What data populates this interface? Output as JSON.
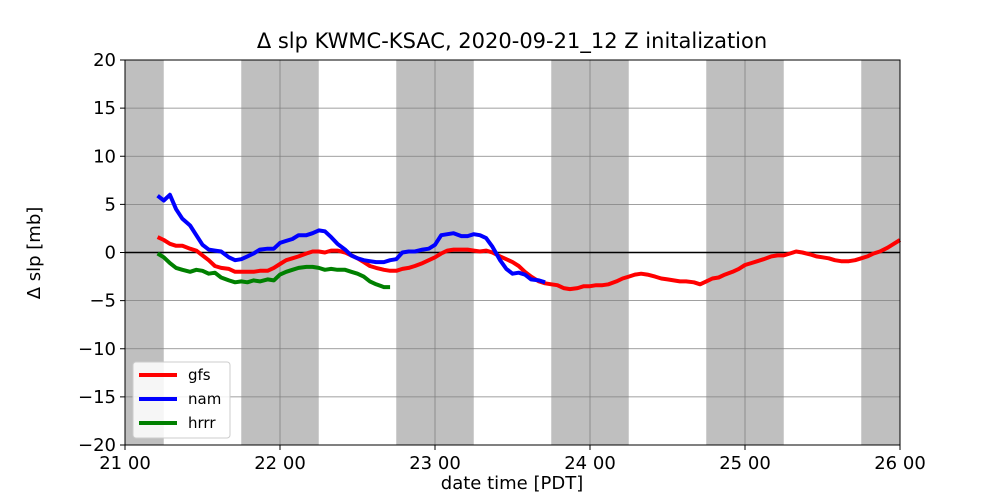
{
  "chart_data": {
    "type": "line",
    "title": "Δ slp KWMC-KSAC, 2020-09-21_12 Z initalization",
    "xlabel": "date time [PDT]",
    "ylabel": "Δ slp [mb]",
    "xlim": [
      21.0,
      26.0
    ],
    "ylim": [
      -20,
      20
    ],
    "x_ticks": [
      21,
      22,
      23,
      24,
      25,
      26
    ],
    "x_tick_labels": [
      "21 00",
      "22 00",
      "23 00",
      "24 00",
      "25 00",
      "26 00"
    ],
    "y_ticks": [
      -20,
      -15,
      -10,
      -5,
      0,
      5,
      10,
      15,
      20
    ],
    "y_tick_labels": [
      "−20",
      "−15",
      "−10",
      "−5",
      "0",
      "5",
      "10",
      "15",
      "20"
    ],
    "grid": true,
    "legend_position": "lower-left",
    "shaded_night_intervals": [
      [
        21.0,
        21.25
      ],
      [
        21.75,
        22.25
      ],
      [
        22.75,
        23.25
      ],
      [
        23.75,
        24.25
      ],
      [
        24.75,
        25.25
      ],
      [
        25.75,
        26.0
      ]
    ],
    "reference_line_y": 0,
    "colors": {
      "gfs": "#ff0000",
      "nam": "#0000ff",
      "hrrr": "#008000",
      "night": "#bfbfbf",
      "grid": "#808080"
    },
    "series": [
      {
        "name": "gfs",
        "color": "#ff0000",
        "points": [
          [
            21.21,
            1.6
          ],
          [
            21.25,
            1.3
          ],
          [
            21.29,
            0.9
          ],
          [
            21.33,
            0.7
          ],
          [
            21.37,
            0.7
          ],
          [
            21.42,
            0.4
          ],
          [
            21.46,
            0.2
          ],
          [
            21.5,
            -0.3
          ],
          [
            21.54,
            -0.8
          ],
          [
            21.58,
            -1.4
          ],
          [
            21.62,
            -1.6
          ],
          [
            21.67,
            -1.7
          ],
          [
            21.71,
            -2.0
          ],
          [
            21.75,
            -2.0
          ],
          [
            21.79,
            -2.0
          ],
          [
            21.83,
            -2.0
          ],
          [
            21.87,
            -1.9
          ],
          [
            21.92,
            -1.9
          ],
          [
            21.96,
            -1.6
          ],
          [
            22.0,
            -1.2
          ],
          [
            22.04,
            -0.8
          ],
          [
            22.08,
            -0.6
          ],
          [
            22.12,
            -0.4
          ],
          [
            22.17,
            -0.1
          ],
          [
            22.21,
            0.1
          ],
          [
            22.25,
            0.1
          ],
          [
            22.29,
            0.0
          ],
          [
            22.33,
            0.2
          ],
          [
            22.37,
            0.2
          ],
          [
            22.42,
            0.0
          ],
          [
            22.46,
            -0.3
          ],
          [
            22.5,
            -0.6
          ],
          [
            22.54,
            -1.0
          ],
          [
            22.58,
            -1.4
          ],
          [
            22.62,
            -1.6
          ],
          [
            22.67,
            -1.8
          ],
          [
            22.71,
            -1.9
          ],
          [
            22.75,
            -1.9
          ],
          [
            22.79,
            -1.7
          ],
          [
            22.83,
            -1.6
          ],
          [
            22.87,
            -1.4
          ],
          [
            22.92,
            -1.1
          ],
          [
            22.96,
            -0.8
          ],
          [
            23.0,
            -0.5
          ],
          [
            23.04,
            -0.1
          ],
          [
            23.08,
            0.2
          ],
          [
            23.12,
            0.3
          ],
          [
            23.17,
            0.3
          ],
          [
            23.21,
            0.3
          ],
          [
            23.25,
            0.2
          ],
          [
            23.29,
            0.1
          ],
          [
            23.33,
            0.2
          ],
          [
            23.37,
            0.0
          ],
          [
            23.42,
            -0.4
          ],
          [
            23.46,
            -0.7
          ],
          [
            23.5,
            -1.0
          ],
          [
            23.54,
            -1.4
          ],
          [
            23.58,
            -2.0
          ],
          [
            23.62,
            -2.5
          ],
          [
            23.67,
            -3.0
          ],
          [
            23.71,
            -3.2
          ],
          [
            23.75,
            -3.3
          ],
          [
            23.79,
            -3.4
          ],
          [
            23.83,
            -3.7
          ],
          [
            23.87,
            -3.8
          ],
          [
            23.92,
            -3.7
          ],
          [
            23.96,
            -3.5
          ],
          [
            24.0,
            -3.5
          ],
          [
            24.04,
            -3.4
          ],
          [
            24.08,
            -3.4
          ],
          [
            24.12,
            -3.3
          ],
          [
            24.17,
            -3.0
          ],
          [
            24.21,
            -2.7
          ],
          [
            24.25,
            -2.5
          ],
          [
            24.29,
            -2.3
          ],
          [
            24.33,
            -2.2
          ],
          [
            24.37,
            -2.3
          ],
          [
            24.42,
            -2.5
          ],
          [
            24.46,
            -2.7
          ],
          [
            24.5,
            -2.8
          ],
          [
            24.54,
            -2.9
          ],
          [
            24.58,
            -3.0
          ],
          [
            24.62,
            -3.0
          ],
          [
            24.67,
            -3.1
          ],
          [
            24.71,
            -3.3
          ],
          [
            24.75,
            -3.0
          ],
          [
            24.79,
            -2.7
          ],
          [
            24.83,
            -2.6
          ],
          [
            24.87,
            -2.3
          ],
          [
            24.92,
            -2.0
          ],
          [
            24.96,
            -1.7
          ],
          [
            25.0,
            -1.3
          ],
          [
            25.04,
            -1.1
          ],
          [
            25.08,
            -0.9
          ],
          [
            25.12,
            -0.7
          ],
          [
            25.17,
            -0.4
          ],
          [
            25.21,
            -0.3
          ],
          [
            25.25,
            -0.3
          ],
          [
            25.29,
            -0.1
          ],
          [
            25.33,
            0.1
          ],
          [
            25.37,
            0.0
          ],
          [
            25.42,
            -0.2
          ],
          [
            25.46,
            -0.4
          ],
          [
            25.5,
            -0.5
          ],
          [
            25.54,
            -0.6
          ],
          [
            25.58,
            -0.8
          ],
          [
            25.62,
            -0.9
          ],
          [
            25.67,
            -0.9
          ],
          [
            25.71,
            -0.8
          ],
          [
            25.75,
            -0.6
          ],
          [
            25.79,
            -0.4
          ],
          [
            25.83,
            -0.1
          ],
          [
            25.87,
            0.1
          ],
          [
            25.92,
            0.5
          ],
          [
            25.96,
            0.9
          ],
          [
            26.0,
            1.3
          ]
        ]
      },
      {
        "name": "nam",
        "color": "#0000ff",
        "points": [
          [
            21.21,
            5.9
          ],
          [
            21.25,
            5.4
          ],
          [
            21.29,
            6.0
          ],
          [
            21.33,
            4.5
          ],
          [
            21.37,
            3.5
          ],
          [
            21.42,
            2.8
          ],
          [
            21.46,
            1.8
          ],
          [
            21.5,
            0.8
          ],
          [
            21.54,
            0.3
          ],
          [
            21.58,
            0.2
          ],
          [
            21.62,
            0.1
          ],
          [
            21.67,
            -0.5
          ],
          [
            21.71,
            -0.8
          ],
          [
            21.75,
            -0.7
          ],
          [
            21.79,
            -0.4
          ],
          [
            21.83,
            -0.1
          ],
          [
            21.87,
            0.3
          ],
          [
            21.92,
            0.4
          ],
          [
            21.96,
            0.4
          ],
          [
            22.0,
            1.0
          ],
          [
            22.04,
            1.2
          ],
          [
            22.08,
            1.4
          ],
          [
            22.12,
            1.8
          ],
          [
            22.17,
            1.8
          ],
          [
            22.21,
            2.0
          ],
          [
            22.25,
            2.3
          ],
          [
            22.29,
            2.2
          ],
          [
            22.33,
            1.6
          ],
          [
            22.37,
            0.9
          ],
          [
            22.42,
            0.3
          ],
          [
            22.46,
            -0.3
          ],
          [
            22.5,
            -0.6
          ],
          [
            22.54,
            -0.8
          ],
          [
            22.58,
            -0.9
          ],
          [
            22.62,
            -1.0
          ],
          [
            22.67,
            -1.0
          ],
          [
            22.71,
            -0.8
          ],
          [
            22.75,
            -0.7
          ],
          [
            22.79,
            0.0
          ],
          [
            22.83,
            0.1
          ],
          [
            22.87,
            0.1
          ],
          [
            22.92,
            0.3
          ],
          [
            22.96,
            0.4
          ],
          [
            23.0,
            0.8
          ],
          [
            23.04,
            1.8
          ],
          [
            23.08,
            1.9
          ],
          [
            23.12,
            2.0
          ],
          [
            23.17,
            1.7
          ],
          [
            23.21,
            1.7
          ],
          [
            23.25,
            1.9
          ],
          [
            23.29,
            1.8
          ],
          [
            23.33,
            1.5
          ],
          [
            23.37,
            0.6
          ],
          [
            23.42,
            -0.8
          ],
          [
            23.46,
            -1.7
          ],
          [
            23.5,
            -2.2
          ],
          [
            23.54,
            -2.1
          ],
          [
            23.58,
            -2.3
          ],
          [
            23.62,
            -2.8
          ],
          [
            23.67,
            -2.9
          ],
          [
            23.71,
            -3.1
          ]
        ]
      },
      {
        "name": "hrrr",
        "color": "#008000",
        "points": [
          [
            21.21,
            -0.1
          ],
          [
            21.25,
            -0.5
          ],
          [
            21.29,
            -1.1
          ],
          [
            21.33,
            -1.6
          ],
          [
            21.37,
            -1.8
          ],
          [
            21.42,
            -2.0
          ],
          [
            21.46,
            -1.8
          ],
          [
            21.5,
            -1.9
          ],
          [
            21.54,
            -2.2
          ],
          [
            21.58,
            -2.1
          ],
          [
            21.62,
            -2.6
          ],
          [
            21.67,
            -2.9
          ],
          [
            21.71,
            -3.1
          ],
          [
            21.75,
            -3.0
          ],
          [
            21.79,
            -3.1
          ],
          [
            21.83,
            -2.9
          ],
          [
            21.87,
            -3.0
          ],
          [
            21.92,
            -2.8
          ],
          [
            21.96,
            -2.9
          ],
          [
            22.0,
            -2.3
          ],
          [
            22.04,
            -2.0
          ],
          [
            22.08,
            -1.8
          ],
          [
            22.12,
            -1.6
          ],
          [
            22.17,
            -1.5
          ],
          [
            22.21,
            -1.5
          ],
          [
            22.25,
            -1.6
          ],
          [
            22.29,
            -1.8
          ],
          [
            22.33,
            -1.7
          ],
          [
            22.37,
            -1.8
          ],
          [
            22.42,
            -1.8
          ],
          [
            22.46,
            -2.0
          ],
          [
            22.5,
            -2.2
          ],
          [
            22.54,
            -2.5
          ],
          [
            22.58,
            -3.0
          ],
          [
            22.62,
            -3.3
          ],
          [
            22.67,
            -3.6
          ],
          [
            22.71,
            -3.6
          ]
        ]
      }
    ]
  }
}
